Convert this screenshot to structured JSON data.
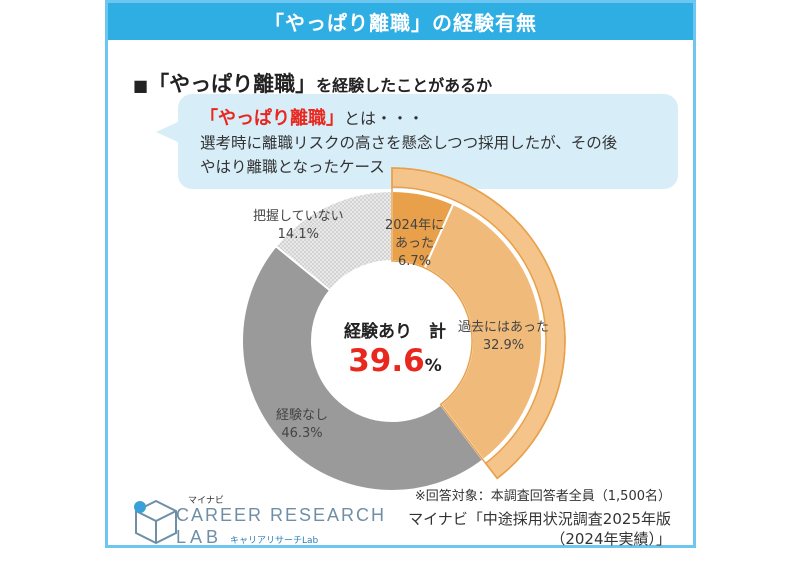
{
  "header": {
    "title": "「やっぱり離職」の経験有無"
  },
  "question": {
    "prefix": "■",
    "term": "「やっぱり離職」",
    "suffix": "を経験したことがあるか"
  },
  "definition": {
    "term": "「やっぱり離職」",
    "tail": "とは・・・",
    "line1": "選考時に離職リスクの高さを懸念しつつ採用したが、その後",
    "line2": "やはり離職となったケース"
  },
  "center": {
    "label": "経験あり　計",
    "value": "39.6",
    "unit": "%"
  },
  "note": "※回答対象：本調査回答者全員（1,500名）",
  "source": {
    "line1": "マイナビ「中途採用状況調査2025年版",
    "line2": "（2024年実績）」"
  },
  "logo": {
    "small": "マイナビ",
    "main": "CAREER RESEARCH",
    "lab": "LAB",
    "jp": "キャリアリサーチLab"
  },
  "colors": {
    "accent": "#2eaee3",
    "highlight": "#e8281f",
    "orange_dark": "#e8a04a",
    "orange_light": "#f0bb7a",
    "gray_dark": "#9a9a9a",
    "gray_light": "#dcdcdc"
  },
  "chart_data": {
    "type": "pie",
    "style": "donut",
    "slices": [
      {
        "label_lines": [
          "2024年に",
          "あった"
        ],
        "value": 6.7,
        "value_text": "6.7%",
        "color": "#e8a04a"
      },
      {
        "label_lines": [
          "過去にはあった"
        ],
        "value": 32.9,
        "value_text": "32.9%",
        "color": "#f0bb7a"
      },
      {
        "label_lines": [
          "経験なし"
        ],
        "value": 46.3,
        "value_text": "46.3%",
        "color": "#9a9a9a"
      },
      {
        "label_lines": [
          "把握していない"
        ],
        "value": 14.1,
        "value_text": "14.1%",
        "color": "#dcdcdc"
      }
    ],
    "highlight": {
      "label": "経験あり　計",
      "value": 39.6
    }
  }
}
